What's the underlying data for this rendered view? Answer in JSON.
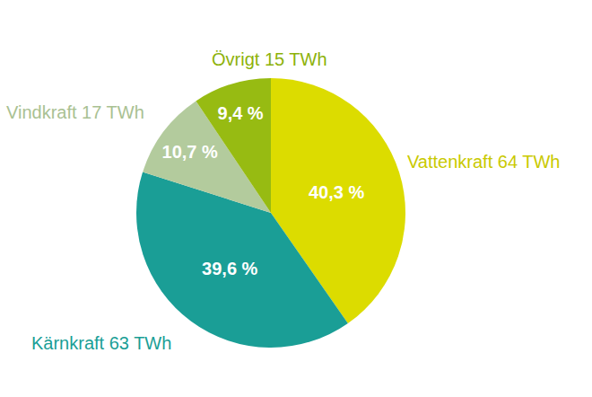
{
  "chart_data": {
    "type": "pie",
    "categories": [
      "Vattenkraft 64 TWh",
      "Kärnkraft 63 TWh",
      "Vindkraft 17 TWh",
      "Övrigt 15 TWh"
    ],
    "values": [
      40.3,
      39.6,
      10.7,
      9.4
    ],
    "value_labels": [
      "40,3 %",
      "39,6 %",
      "10,7 %",
      "9,4 %"
    ],
    "colors": [
      "#dcdc00",
      "#1a9e96",
      "#b3cb9d",
      "#97bb12"
    ],
    "data_labels": true
  }
}
